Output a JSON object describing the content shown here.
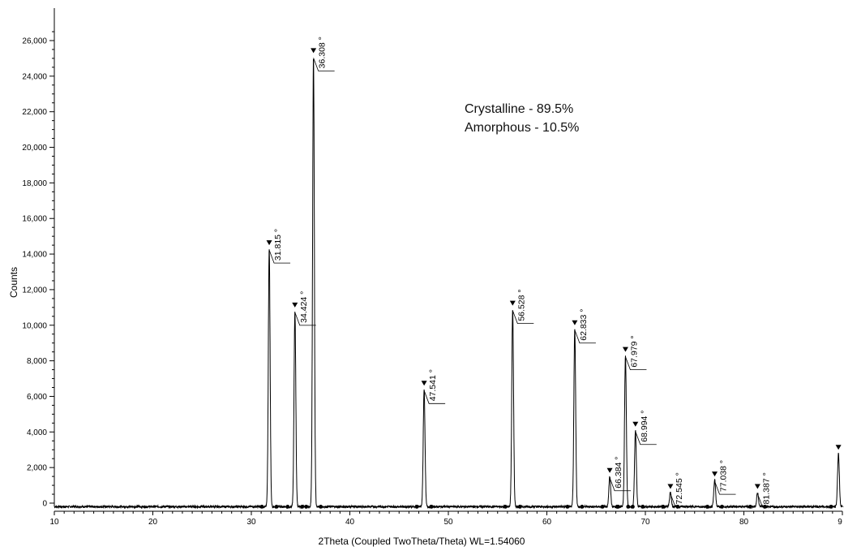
{
  "chart_data": {
    "type": "line",
    "xlabel": "2Theta (Coupled TwoTheta/Theta) WL=1.54060",
    "ylabel": "Counts",
    "xlim": [
      10,
      90
    ],
    "ylim": [
      0,
      27000
    ],
    "x_ticks": [
      "10",
      "20",
      "30",
      "40",
      "50",
      "60",
      "70",
      "80",
      "9"
    ],
    "y_ticks": [
      "0",
      "2,000",
      "4,000",
      "6,000",
      "8,000",
      "10,000",
      "12,000",
      "14,000",
      "16,000",
      "18,000",
      "20,000",
      "22,000",
      "24,000",
      "26,000"
    ],
    "grid": false,
    "background_level": -200,
    "peaks": [
      {
        "x": 31.815,
        "y": 14500,
        "label": "31.815 °"
      },
      {
        "x": 34.424,
        "y": 11000,
        "label": "34.424 °"
      },
      {
        "x": 36.308,
        "y": 25300,
        "label": "36.308 °"
      },
      {
        "x": 47.541,
        "y": 6600,
        "label": "47.541 °"
      },
      {
        "x": 56.528,
        "y": 11100,
        "label": "56.528 °"
      },
      {
        "x": 62.833,
        "y": 10000,
        "label": "62.833 °"
      },
      {
        "x": 66.384,
        "y": 1700,
        "label": "66.384 °"
      },
      {
        "x": 67.979,
        "y": 8500,
        "label": "67.979 °"
      },
      {
        "x": 68.994,
        "y": 4300,
        "label": "68.994 °"
      },
      {
        "x": 72.545,
        "y": 800,
        "label": "72.545 °"
      },
      {
        "x": 77.038,
        "y": 1500,
        "label": "77.038 °"
      },
      {
        "x": 81.387,
        "y": 800,
        "label": "81.387 °"
      },
      {
        "x": 89.6,
        "y": 3000,
        "label": ""
      }
    ],
    "annotations": [
      "Crystalline - 89.5%",
      "Amorphous - 10.5%"
    ],
    "line_color": "#000000"
  }
}
